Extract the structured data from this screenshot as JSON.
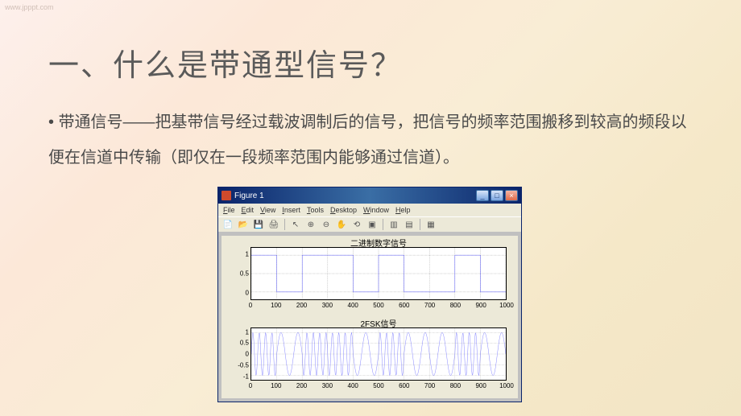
{
  "watermark": "www.jpppt.com",
  "title": "一、什么是带通型信号？",
  "body": "带通信号——把基带信号经过载波调制后的信号，把信号的频率范围搬移到较高的频段以便在信道中传输（即仅在一段频率范围内能够通过信道）。",
  "figure": {
    "window_title": "Figure 1",
    "menus": [
      "File",
      "Edit",
      "View",
      "Insert",
      "Tools",
      "Desktop",
      "Window",
      "Help"
    ],
    "win_buttons": {
      "min": "_",
      "max": "□",
      "close": "×"
    },
    "toolbar_icons": [
      "📄",
      "📂",
      "💾",
      "🖨",
      "↻",
      "🔍",
      "🔍",
      "✋",
      "📐",
      "📊",
      "◧",
      "◨",
      "▦"
    ],
    "background": "#ece9d8",
    "titlebar_gradient": [
      "#0a246a",
      "#3a6ea5",
      "#0a246a"
    ],
    "close_gradient": [
      "#f5b5a5",
      "#e06a4a"
    ],
    "button_gradient": [
      "#d8e4f8",
      "#7aa5e0"
    ],
    "chart1": {
      "type": "step",
      "title": "二进制数字信号",
      "xlim": [
        0,
        1000
      ],
      "xtick_step": 100,
      "ylim": [
        -0.2,
        1.2
      ],
      "yticks": [
        0,
        0.5,
        1
      ],
      "bg": "#ffffff",
      "grid_color": "#000000",
      "grid_dash": "2 2",
      "series_color": "#3030ff",
      "bit_width": 100,
      "bits": [
        1,
        0,
        1,
        1,
        0,
        1,
        0,
        0,
        1,
        0
      ]
    },
    "chart2": {
      "type": "fsk",
      "title": "2FSK信号",
      "xlim": [
        0,
        1000
      ],
      "xtick_step": 100,
      "ylim": [
        -1.2,
        1.2
      ],
      "yticks": [
        -1,
        -0.5,
        0,
        0.5,
        1
      ],
      "bg": "#ffffff",
      "grid_color": "#000000",
      "grid_dash": "2 2",
      "series_color": "#3030ff",
      "bit_width": 100,
      "bits": [
        1,
        0,
        1,
        1,
        0,
        1,
        0,
        0,
        1,
        0
      ],
      "freq_high_cycles_per_bit": 4,
      "freq_low_cycles_per_bit": 1.5,
      "amplitude": 1.0
    }
  }
}
